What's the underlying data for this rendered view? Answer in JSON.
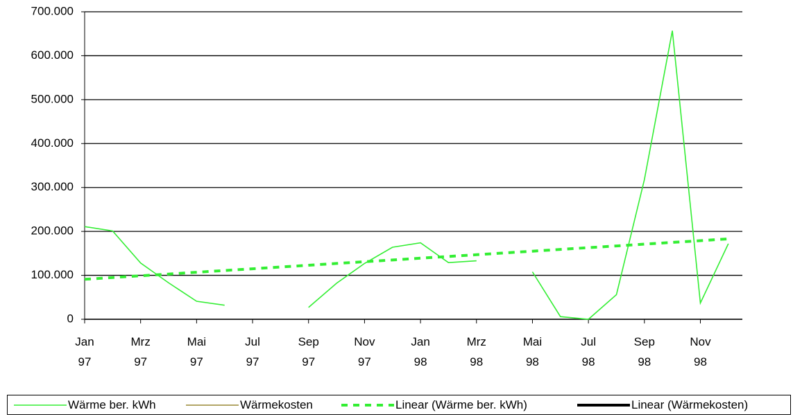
{
  "chart_data": {
    "type": "line",
    "categories": [
      "Jan\n97",
      null,
      "Mrz\n97",
      null,
      "Mai\n97",
      null,
      "Jul\n97",
      null,
      "Sep\n97",
      null,
      "Nov\n97",
      null,
      "Jan\n98",
      null,
      "Mrz\n98",
      null,
      "Mai\n98",
      null,
      "Jul\n98",
      null,
      "Sep\n98",
      null,
      "Nov\n98",
      null
    ],
    "series": [
      {
        "name": "Wärme ber. kWh",
        "color": "#33ee33",
        "dashed": false,
        "values": [
          211000,
          201000,
          128000,
          83000,
          41000,
          32000,
          null,
          null,
          27000,
          82000,
          127000,
          164000,
          174000,
          129000,
          133000,
          null,
          108000,
          6000,
          0,
          56000,
          318000,
          657000,
          37000,
          172000
        ]
      },
      {
        "name": "Wärmekosten",
        "color": "#998833",
        "dashed": false,
        "values": [
          null,
          null,
          null,
          null,
          null,
          null,
          null,
          null,
          null,
          null,
          null,
          null,
          null,
          null,
          null,
          null,
          null,
          null,
          null,
          null,
          null,
          null,
          null,
          null
        ]
      },
      {
        "name": "Linear (Wärme ber. kWh)",
        "color": "#33ee33",
        "dashed": true,
        "trendline": true,
        "values": [
          91000,
          95000,
          99000,
          103000,
          107000,
          111000,
          115000,
          119000,
          123000,
          127000,
          131000,
          135000,
          139000,
          143000,
          147000,
          151000,
          155000,
          159000,
          163000,
          167000,
          171000,
          175000,
          179000,
          183000
        ]
      },
      {
        "name": "Linear (Wärmekosten)",
        "color": "#000000",
        "dashed": false,
        "trendline": true,
        "values": [
          null,
          null,
          null,
          null,
          null,
          null,
          null,
          null,
          null,
          null,
          null,
          null,
          null,
          null,
          null,
          null,
          null,
          null,
          null,
          null,
          null,
          null,
          null,
          null
        ]
      }
    ],
    "ylim": [
      0,
      700000
    ],
    "yticks": [
      0,
      {
        "value": 100000,
        "label": "100.000"
      },
      {
        "value": 200000,
        "label": "200.000"
      },
      {
        "value": 300000,
        "label": "300.000"
      },
      {
        "value": 400000,
        "label": "400.000"
      },
      {
        "value": 500000,
        "label": "500.000"
      },
      {
        "value": 600000,
        "label": "600.000"
      },
      {
        "value": 700000,
        "label": "700.000"
      }
    ],
    "grid": true
  }
}
